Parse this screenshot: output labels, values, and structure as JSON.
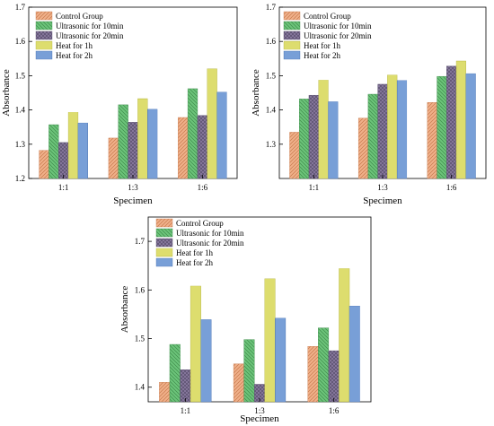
{
  "chart_data": [
    {
      "type": "bar",
      "categories": [
        "1:1",
        "1:3",
        "1:6"
      ],
      "xlabel": "Specimen",
      "ylabel": "Absorbance",
      "ylim": [
        1.2,
        1.7
      ],
      "yticks": [
        "1.2",
        "1.3",
        "1.4",
        "1.5",
        "1.6",
        "1.7"
      ],
      "series": [
        {
          "name": "Control Group",
          "values": [
            1.282,
            1.318,
            1.378
          ]
        },
        {
          "name": "Ultrasonic for 10min",
          "values": [
            1.357,
            1.415,
            1.462
          ]
        },
        {
          "name": "Ultrasonic for 20min",
          "values": [
            1.305,
            1.364,
            1.384
          ]
        },
        {
          "name": "Heat for 1h",
          "values": [
            1.393,
            1.433,
            1.52
          ]
        },
        {
          "name": "Heat for 2h",
          "values": [
            1.362,
            1.402,
            1.452
          ]
        }
      ]
    },
    {
      "type": "bar",
      "categories": [
        "1:1",
        "1:3",
        "1:6"
      ],
      "xlabel": "Specimen",
      "ylabel": "Absorbance",
      "ylim": [
        1.2,
        1.7
      ],
      "yticks": [
        "1.3",
        "1.4",
        "1.5",
        "1.6",
        "1.7"
      ],
      "series": [
        {
          "name": "Control Group",
          "values": [
            1.335,
            1.376,
            1.422
          ]
        },
        {
          "name": "Ultrasonic for 10min",
          "values": [
            1.432,
            1.446,
            1.498
          ]
        },
        {
          "name": "Ultrasonic for 20min",
          "values": [
            1.443,
            1.475,
            1.528
          ]
        },
        {
          "name": "Heat for 1h",
          "values": [
            1.487,
            1.502,
            1.543
          ]
        },
        {
          "name": "Heat for 2h",
          "values": [
            1.424,
            1.486,
            1.506
          ]
        }
      ]
    },
    {
      "type": "bar",
      "categories": [
        "1:1",
        "1:3",
        "1:6"
      ],
      "xlabel": "Specimen",
      "ylabel": "Absorbance",
      "ylim": [
        1.37,
        1.75
      ],
      "yticks": [
        "1.4",
        "1.5",
        "1.6",
        "1.7"
      ],
      "series": [
        {
          "name": "Control Group",
          "values": [
            1.41,
            1.448,
            1.484
          ]
        },
        {
          "name": "Ultrasonic for 10min",
          "values": [
            1.488,
            1.498,
            1.522
          ]
        },
        {
          "name": "Ultrasonic for 20min",
          "values": [
            1.436,
            1.406,
            1.475
          ]
        },
        {
          "name": "Heat for 1h",
          "values": [
            1.608,
            1.623,
            1.644
          ]
        },
        {
          "name": "Heat for 2h",
          "values": [
            1.539,
            1.542,
            1.567
          ]
        }
      ]
    }
  ],
  "series_style": [
    {
      "fill": "#f0b08a",
      "stroke": "#c77a4d",
      "pattern": "diag-up"
    },
    {
      "fill": "#6cc47a",
      "stroke": "#3f8c4b",
      "pattern": "diag-down"
    },
    {
      "fill": "#8a7aa0",
      "stroke": "#574d6b",
      "pattern": "cross"
    },
    {
      "fill": "#f5f58a",
      "stroke": "#b5b53f",
      "pattern": "horizontal"
    },
    {
      "fill": "#8fb4e8",
      "stroke": "#4f78b8",
      "pattern": "vertical"
    }
  ]
}
